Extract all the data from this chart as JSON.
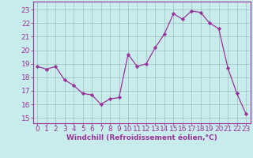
{
  "hours": [
    0,
    1,
    2,
    3,
    4,
    5,
    6,
    7,
    8,
    9,
    10,
    11,
    12,
    13,
    14,
    15,
    16,
    17,
    18,
    19,
    20,
    21,
    22,
    23
  ],
  "values": [
    18.8,
    18.6,
    18.8,
    17.8,
    17.4,
    16.8,
    16.7,
    16.0,
    16.4,
    16.5,
    19.7,
    18.8,
    19.0,
    20.2,
    21.2,
    22.7,
    22.3,
    22.9,
    22.8,
    22.0,
    21.6,
    18.7,
    16.8,
    15.3
  ],
  "line_color": "#993399",
  "marker": "D",
  "marker_size": 2.2,
  "bg_color": "#c8ecec",
  "grid_color": "#9dbfbf",
  "ylabel_ticks": [
    15,
    16,
    17,
    18,
    19,
    20,
    21,
    22,
    23
  ],
  "xlim": [
    -0.5,
    23.5
  ],
  "ylim": [
    14.6,
    23.6
  ],
  "xticks": [
    0,
    1,
    2,
    3,
    4,
    5,
    6,
    7,
    8,
    9,
    10,
    11,
    12,
    13,
    14,
    15,
    16,
    17,
    18,
    19,
    20,
    21,
    22,
    23
  ],
  "xlabel": "Windchill (Refroidissement éolien,°C)",
  "xlabel_fontsize": 6.5,
  "tick_fontsize": 6.5
}
